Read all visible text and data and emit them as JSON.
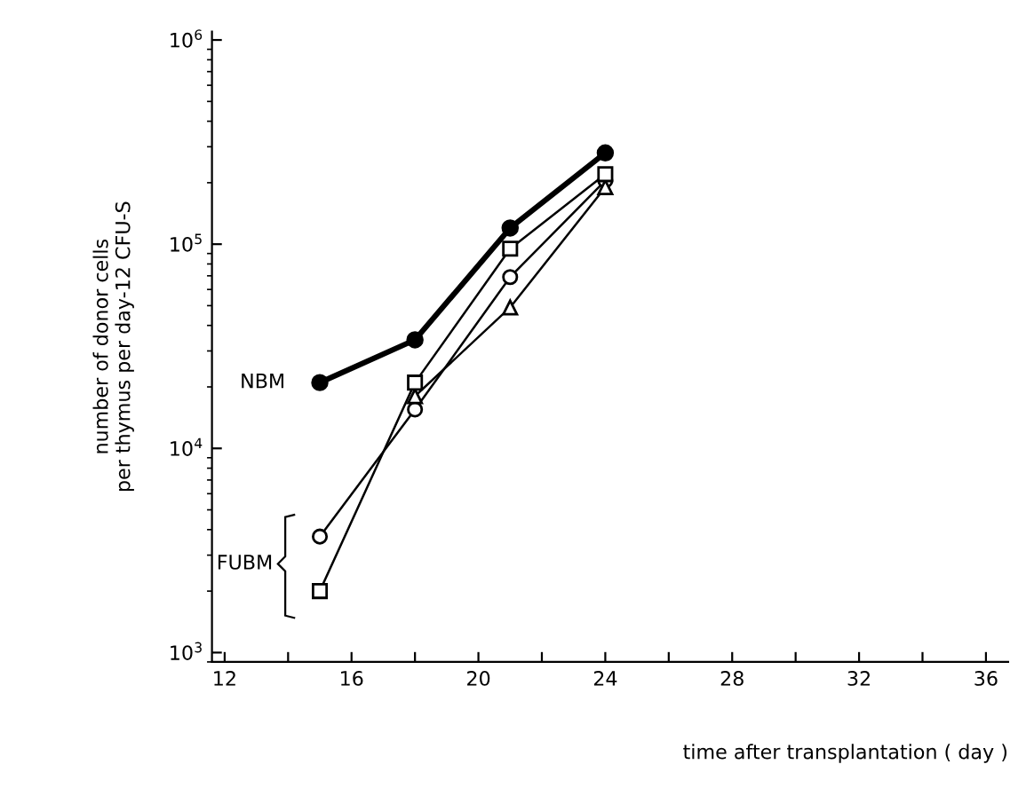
{
  "chart_data": {
    "type": "line",
    "xlabel": "time after transplantation ( day )",
    "ylabel": "number of donor cells\nper thymus per day-12 CFU-S",
    "log": "y",
    "grid": false,
    "xlim": [
      11.6,
      36.7
    ],
    "xticks": [
      12,
      {
        "value": 14,
        "label": null
      },
      16,
      {
        "value": 18,
        "label": null
      },
      20,
      {
        "value": 22,
        "label": null
      },
      24,
      {
        "value": 26,
        "label": null
      },
      28,
      {
        "value": 30,
        "label": null
      },
      32,
      {
        "value": 34,
        "label": null
      },
      36
    ],
    "ylim": [
      900,
      1100000
    ],
    "yticks": [
      {
        "value": 1000,
        "label": "10$^{3}$"
      },
      {
        "value": 10000,
        "label": "10$^{4}$"
      },
      {
        "value": 100000,
        "label": "10$^{5}$"
      },
      {
        "value": 1000000,
        "label": "10$^{6}$"
      }
    ],
    "series": [
      {
        "color": "#000000",
        "marker": "circle",
        "x": [
          15,
          18,
          21,
          24
        ],
        "values": [
          21000,
          34000,
          120000,
          280000
        ]
      },
      {
        "color": "#000000",
        "marker": "square",
        "x": [
          15,
          18,
          21,
          24
        ],
        "values": [
          2000,
          21000,
          95000,
          220000
        ]
      },
      {
        "color": "#000000",
        "marker": "circle",
        "x": [
          15,
          18,
          21,
          24
        ],
        "values": [
          3700,
          15500,
          69000,
          205000
        ]
      },
      {
        "color": "#000000",
        "marker": "triangle",
        "x": [
          18,
          21,
          24
        ],
        "values": [
          18000,
          49000,
          190000
        ]
      }
    ],
    "annotations": [
      {
        "text": "NBM",
        "x": 15,
        "y": 21000
      },
      "FUBM"
    ]
  }
}
